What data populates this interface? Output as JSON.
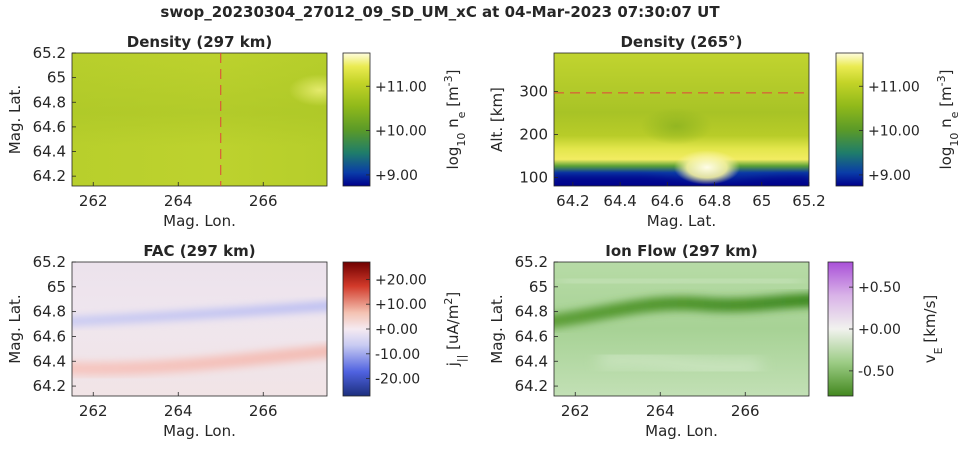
{
  "figure": {
    "title": "swop_20230304_27012_09_SD_UM_xC at 04-Mar-2023 07:30:07 UT"
  },
  "colors": {
    "density": [
      "#00008b",
      "#0a3ca8",
      "#1f7d6a",
      "#5a9a28",
      "#90b91a",
      "#c4d428",
      "#eaeb52",
      "#fffde0"
    ],
    "fac": [
      "#1c2f7e",
      "#4f62e0",
      "#c9cbf2",
      "#f5eaf1",
      "#f4c3b3",
      "#d23a2a",
      "#700000"
    ],
    "ionflow": [
      "#43881f",
      "#9ccc85",
      "#f1f2ee",
      "#d9b3e8",
      "#a950d8"
    ]
  },
  "chart_data": [
    {
      "id": "density-horizontal",
      "type": "heatmap",
      "title": "Density (297 km)",
      "xlabel": "Mag. Lon.",
      "ylabel": "Mag. Lat.",
      "xlim": [
        261.5,
        267.5
      ],
      "ylim": [
        64.12,
        65.2
      ],
      "xticks": [
        262,
        264,
        266
      ],
      "yticks": [
        64.2,
        64.4,
        64.6,
        64.8,
        65.0,
        65.2
      ],
      "ytick_labels": [
        "64.2",
        "64.4",
        "64.6",
        "64.8",
        "65",
        "65.2"
      ],
      "marker_line": {
        "axis": "x",
        "value": 265
      },
      "colorbar": {
        "label_base": "log",
        "label_sub": "10",
        "label_rest": " n",
        "label_sub2": "e",
        "label_unit": " [m",
        "label_sup": "-3",
        "label_end": "]",
        "range": [
          8.75,
          11.75
        ],
        "ticks": [
          9.0,
          10.0,
          11.0
        ],
        "tick_labels": [
          "+9.00",
          "+10.00",
          "+11.00"
        ],
        "colormap": "density"
      }
    },
    {
      "id": "density-vertical",
      "type": "heatmap",
      "title": "Density (265°)",
      "xlabel": "Mag. Lat.",
      "ylabel": "Alt. [km]",
      "xlim": [
        64.12,
        65.2
      ],
      "ylim": [
        80,
        390
      ],
      "xticks": [
        64.2,
        64.4,
        64.6,
        64.8,
        65.0,
        65.2
      ],
      "xtick_labels": [
        "64.2",
        "64.4",
        "64.6",
        "64.8",
        "65",
        "65.2"
      ],
      "yticks": [
        100,
        200,
        300
      ],
      "marker_line": {
        "axis": "y",
        "value": 297
      },
      "colorbar": {
        "label_base": "log",
        "label_sub": "10",
        "label_rest": " n",
        "label_sub2": "e",
        "label_unit": " [m",
        "label_sup": "-3",
        "label_end": "]",
        "range": [
          8.75,
          11.75
        ],
        "ticks": [
          9.0,
          10.0,
          11.0
        ],
        "tick_labels": [
          "+9.00",
          "+10.00",
          "+11.00"
        ],
        "colormap": "density"
      }
    },
    {
      "id": "fac",
      "type": "heatmap",
      "title": "FAC (297 km)",
      "xlabel": "Mag. Lon.",
      "ylabel": "Mag. Lat.",
      "xlim": [
        261.5,
        267.5
      ],
      "ylim": [
        64.12,
        65.2
      ],
      "xticks": [
        262,
        264,
        266
      ],
      "yticks": [
        64.2,
        64.4,
        64.6,
        64.8,
        65.0,
        65.2
      ],
      "ytick_labels": [
        "64.2",
        "64.4",
        "64.6",
        "64.8",
        "65",
        "65.2"
      ],
      "colorbar": {
        "label_base": "j",
        "label_sub": "||",
        "label_rest": " [uA/m",
        "label_sup": "2",
        "label_end": "]",
        "range": [
          -27,
          27
        ],
        "ticks": [
          -20,
          -10,
          0,
          10,
          20
        ],
        "tick_labels": [
          "-20.00",
          "-10.00",
          "+0.00",
          "+10.00",
          "+20.00"
        ],
        "colormap": "fac"
      }
    },
    {
      "id": "ion-flow",
      "type": "heatmap",
      "title": "Ion Flow (297 km)",
      "xlabel": "Mag. Lon.",
      "ylabel": "Mag. Lat.",
      "xlim": [
        261.5,
        267.5
      ],
      "ylim": [
        64.12,
        65.2
      ],
      "xticks": [
        262,
        264,
        266
      ],
      "yticks": [
        64.2,
        64.4,
        64.6,
        64.8,
        65.0,
        65.2
      ],
      "ytick_labels": [
        "64.2",
        "64.4",
        "64.6",
        "64.8",
        "65",
        "65.2"
      ],
      "colorbar": {
        "label_base": "v",
        "label_sub": "E",
        "label_rest": " [km/s]",
        "range": [
          -0.8,
          0.8
        ],
        "ticks": [
          -0.5,
          0.0,
          0.5
        ],
        "tick_labels": [
          "-0.50",
          "+0.00",
          "+0.50"
        ],
        "colormap": "ionflow"
      }
    }
  ]
}
